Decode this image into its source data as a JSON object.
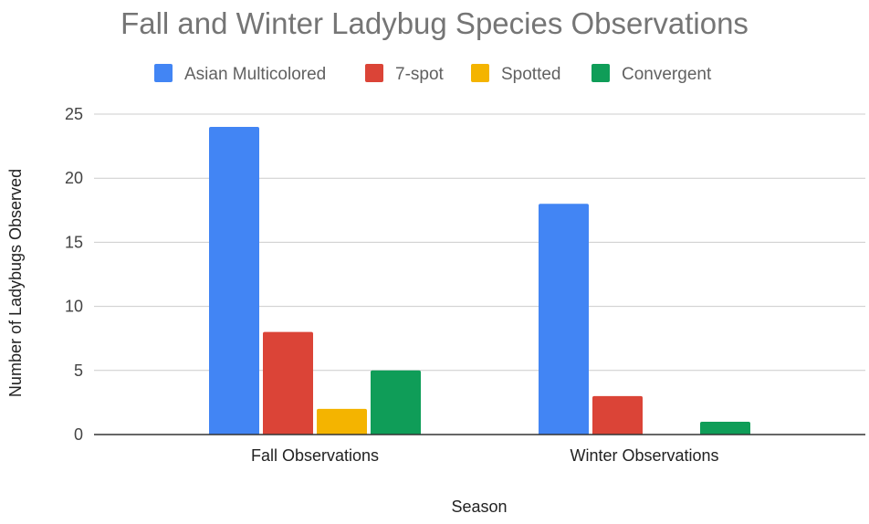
{
  "chart_data": {
    "type": "bar",
    "title": "Fall and Winter Ladybug Species Observations",
    "xlabel": "Season",
    "ylabel": "Number of Ladybugs Observed",
    "categories": [
      "Fall Observations",
      "Winter Observations"
    ],
    "series": [
      {
        "name": "Asian Multicolored",
        "values": [
          24,
          18
        ],
        "color": "#4285f4"
      },
      {
        "name": "7-spot",
        "values": [
          8,
          3
        ],
        "color": "#db4437"
      },
      {
        "name": "Spotted",
        "values": [
          2,
          0
        ],
        "color": "#f4b400"
      },
      {
        "name": "Convergent",
        "values": [
          5,
          1
        ],
        "color": "#0f9d58"
      }
    ],
    "ylim": [
      0,
      25
    ],
    "yticks": [
      0,
      5,
      10,
      15,
      20,
      25
    ],
    "grid": true,
    "legend_position": "top"
  }
}
